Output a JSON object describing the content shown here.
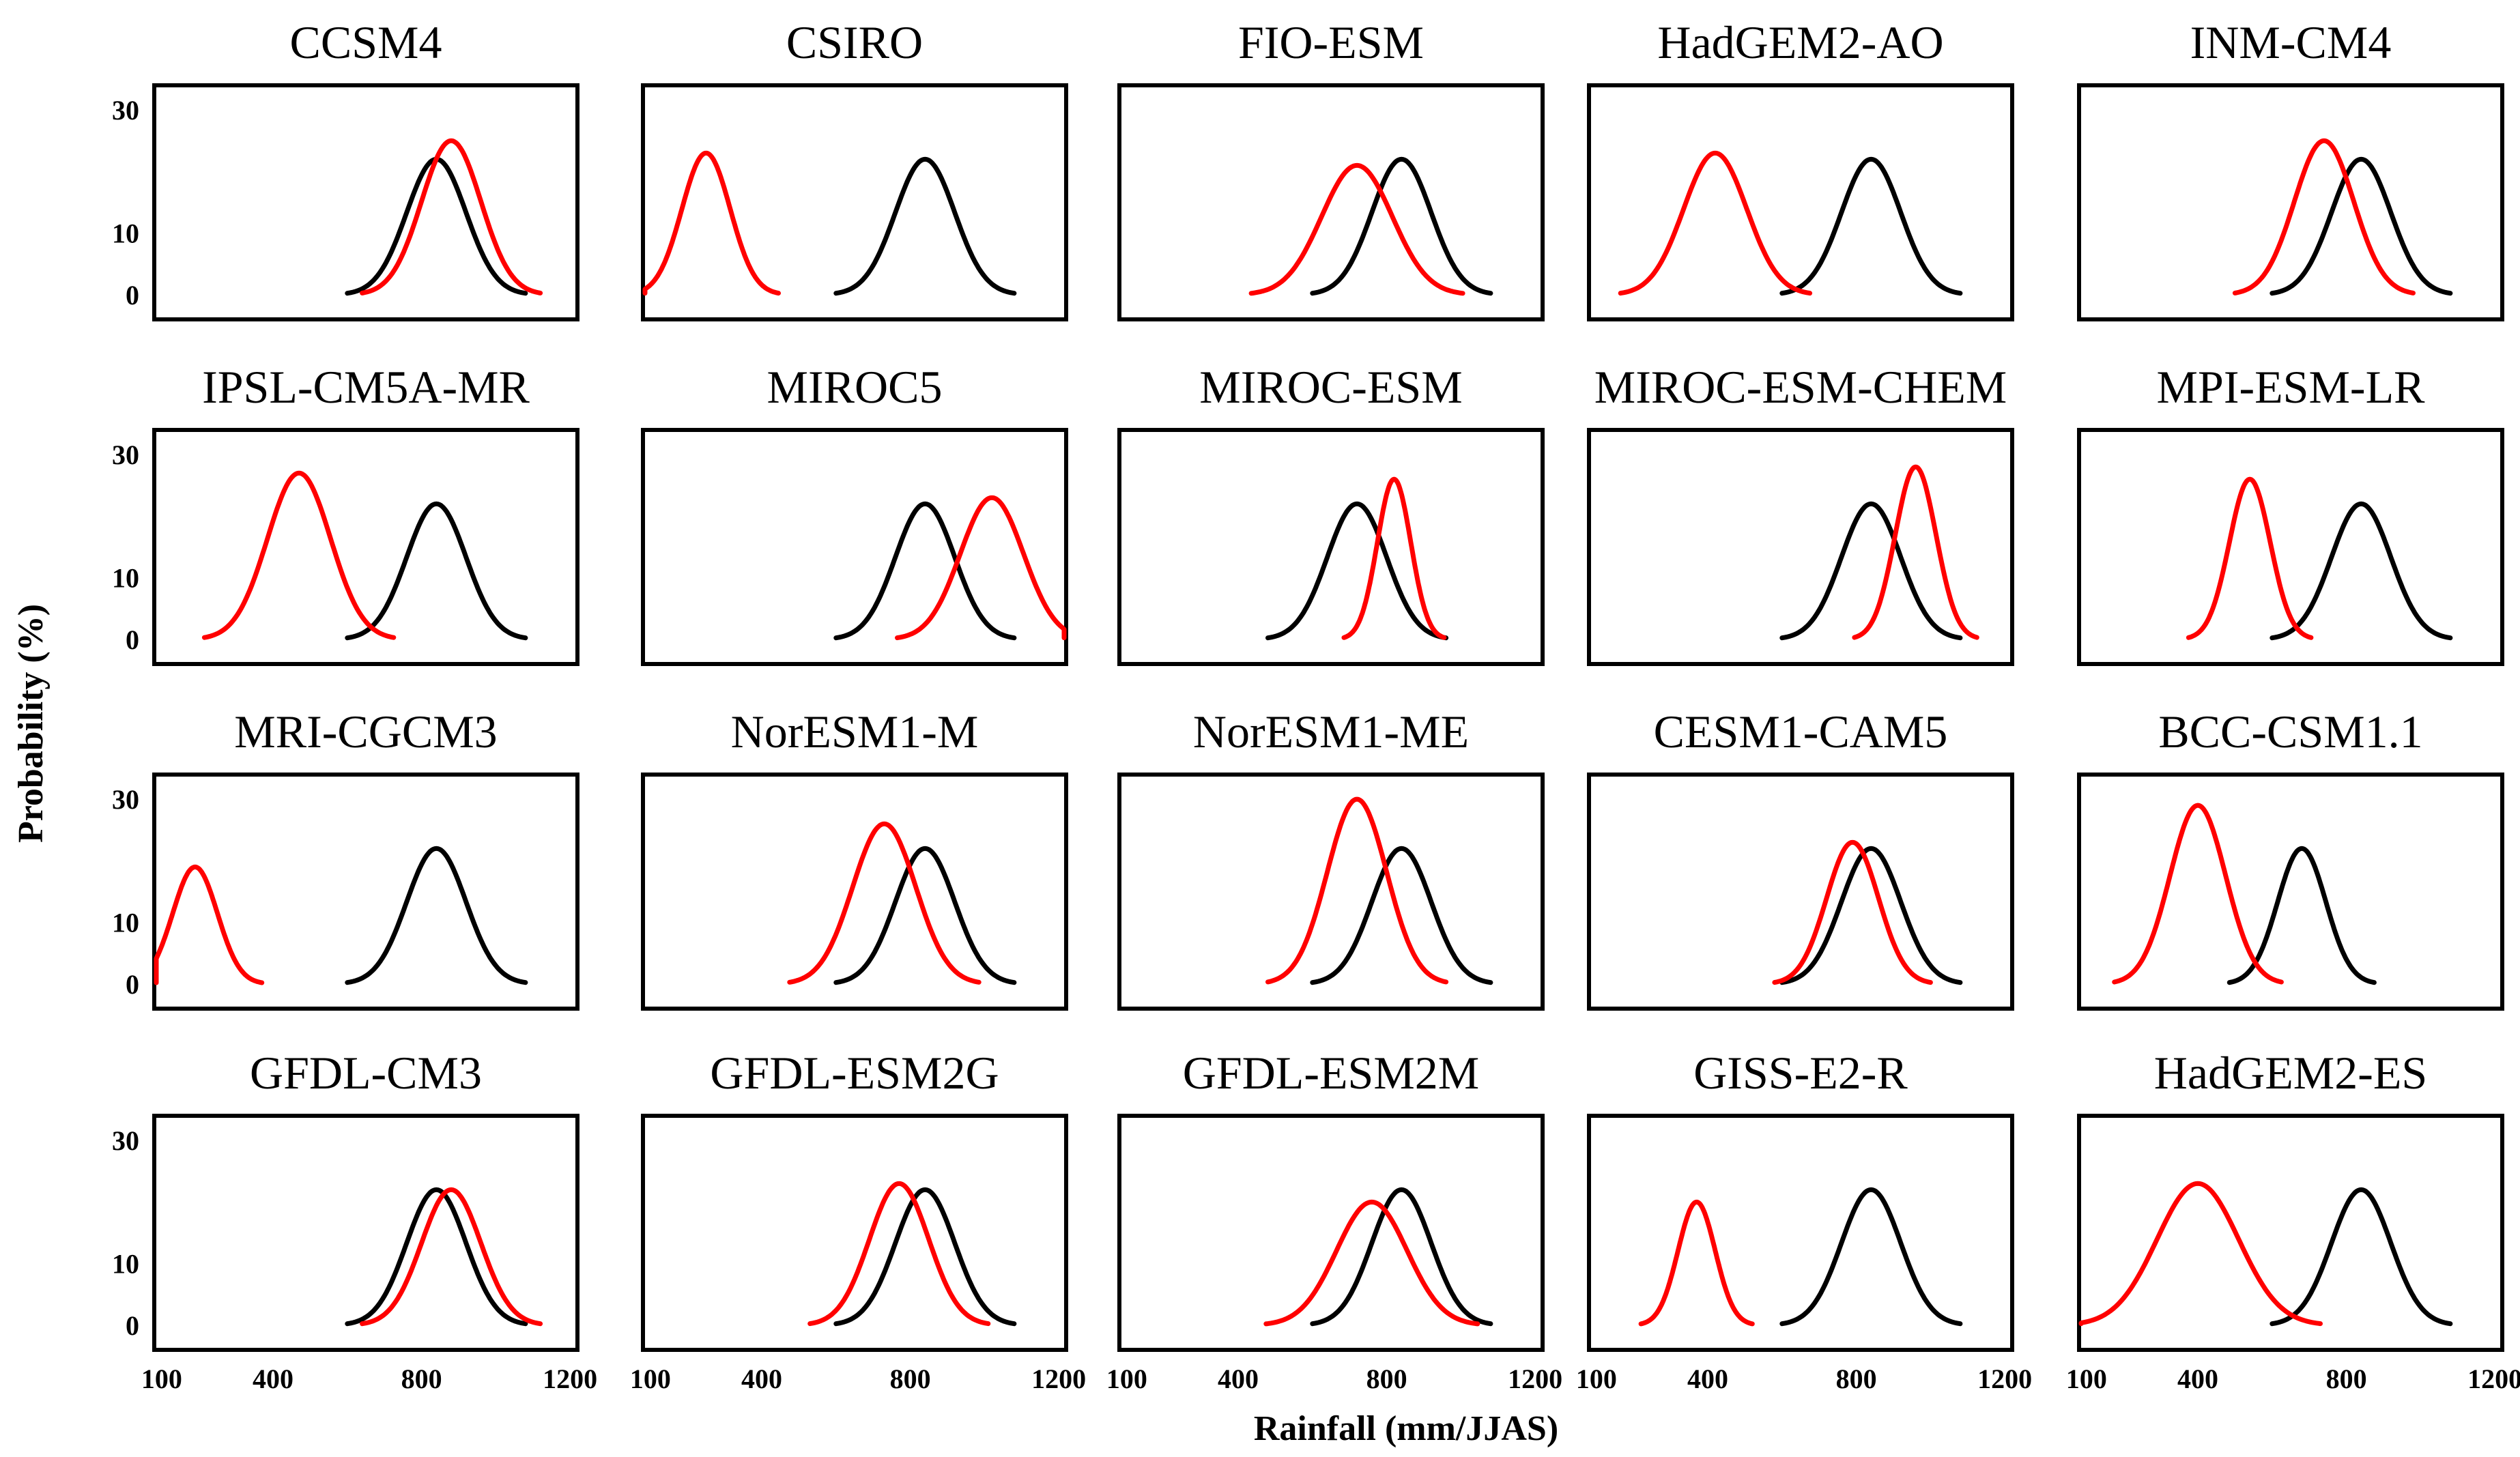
{
  "chart_data": {
    "type": "line",
    "ylabel": "Probability (%)",
    "xlabel": "Rainfall (mm/JJAS)",
    "xlim": [
      80,
      1220
    ],
    "ylim": [
      -4,
      34
    ],
    "xticks": [
      "100",
      "400",
      "800",
      "1200"
    ],
    "xtick_values": [
      100,
      400,
      800,
      1200
    ],
    "yticks": [
      "0",
      "10",
      "30"
    ],
    "ytick_values": [
      0,
      10,
      30
    ],
    "series_colors": {
      "observed": "#000000",
      "model": "#ff0000"
    },
    "panels": [
      {
        "title": "CCSM4",
        "observed": {
          "mean": 840,
          "sd": 80,
          "peak": 22
        },
        "model": {
          "mean": 880,
          "sd": 80,
          "peak": 25
        }
      },
      {
        "title": "CSIRO",
        "observed": {
          "mean": 840,
          "sd": 80,
          "peak": 22
        },
        "model": {
          "mean": 250,
          "sd": 65,
          "peak": 23
        }
      },
      {
        "title": "FIO-ESM",
        "observed": {
          "mean": 840,
          "sd": 80,
          "peak": 22
        },
        "model": {
          "mean": 720,
          "sd": 95,
          "peak": 21
        }
      },
      {
        "title": "HadGEM2-AO",
        "observed": {
          "mean": 840,
          "sd": 80,
          "peak": 22
        },
        "model": {
          "mean": 420,
          "sd": 85,
          "peak": 23
        }
      },
      {
        "title": "INM-CM4",
        "observed": {
          "mean": 840,
          "sd": 80,
          "peak": 22
        },
        "model": {
          "mean": 740,
          "sd": 80,
          "peak": 25
        }
      },
      {
        "title": "IPSL-CM5A-MR",
        "observed": {
          "mean": 840,
          "sd": 80,
          "peak": 22
        },
        "model": {
          "mean": 470,
          "sd": 85,
          "peak": 27
        }
      },
      {
        "title": "MIROC5",
        "observed": {
          "mean": 840,
          "sd": 80,
          "peak": 22
        },
        "model": {
          "mean": 1020,
          "sd": 85,
          "peak": 23
        }
      },
      {
        "title": "MIROC-ESM",
        "observed": {
          "mean": 720,
          "sd": 80,
          "peak": 22
        },
        "model": {
          "mean": 820,
          "sd": 45,
          "peak": 26
        }
      },
      {
        "title": "MIROC-ESM-CHEM",
        "observed": {
          "mean": 840,
          "sd": 80,
          "peak": 22
        },
        "model": {
          "mean": 960,
          "sd": 55,
          "peak": 28
        }
      },
      {
        "title": "MPI-ESM-LR",
        "observed": {
          "mean": 840,
          "sd": 80,
          "peak": 22
        },
        "model": {
          "mean": 540,
          "sd": 55,
          "peak": 26
        }
      },
      {
        "title": "MRI-CGCM3",
        "observed": {
          "mean": 840,
          "sd": 80,
          "peak": 22
        },
        "model": {
          "mean": 190,
          "sd": 60,
          "peak": 19
        }
      },
      {
        "title": "NorESM1-M",
        "observed": {
          "mean": 840,
          "sd": 80,
          "peak": 22
        },
        "model": {
          "mean": 730,
          "sd": 85,
          "peak": 26
        }
      },
      {
        "title": "NorESM1-ME",
        "observed": {
          "mean": 840,
          "sd": 80,
          "peak": 22
        },
        "model": {
          "mean": 720,
          "sd": 80,
          "peak": 30
        }
      },
      {
        "title": "CESM1-CAM5",
        "observed": {
          "mean": 840,
          "sd": 80,
          "peak": 22
        },
        "model": {
          "mean": 790,
          "sd": 70,
          "peak": 23
        }
      },
      {
        "title": "BCC-CSM1.1",
        "observed": {
          "mean": 680,
          "sd": 65,
          "peak": 22
        },
        "model": {
          "mean": 400,
          "sd": 75,
          "peak": 29
        }
      },
      {
        "title": "GFDL-CM3",
        "observed": {
          "mean": 840,
          "sd": 80,
          "peak": 22
        },
        "model": {
          "mean": 880,
          "sd": 80,
          "peak": 22
        }
      },
      {
        "title": "GFDL-ESM2G",
        "observed": {
          "mean": 840,
          "sd": 80,
          "peak": 22
        },
        "model": {
          "mean": 770,
          "sd": 80,
          "peak": 23
        }
      },
      {
        "title": "GFDL-ESM2M",
        "observed": {
          "mean": 840,
          "sd": 80,
          "peak": 22
        },
        "model": {
          "mean": 760,
          "sd": 95,
          "peak": 20
        }
      },
      {
        "title": "GISS-E2-R",
        "observed": {
          "mean": 840,
          "sd": 80,
          "peak": 22
        },
        "model": {
          "mean": 370,
          "sd": 50,
          "peak": 20
        }
      },
      {
        "title": "HadGEM2-ES",
        "observed": {
          "mean": 840,
          "sd": 80,
          "peak": 22
        },
        "model": {
          "mean": 400,
          "sd": 110,
          "peak": 23
        }
      }
    ]
  }
}
